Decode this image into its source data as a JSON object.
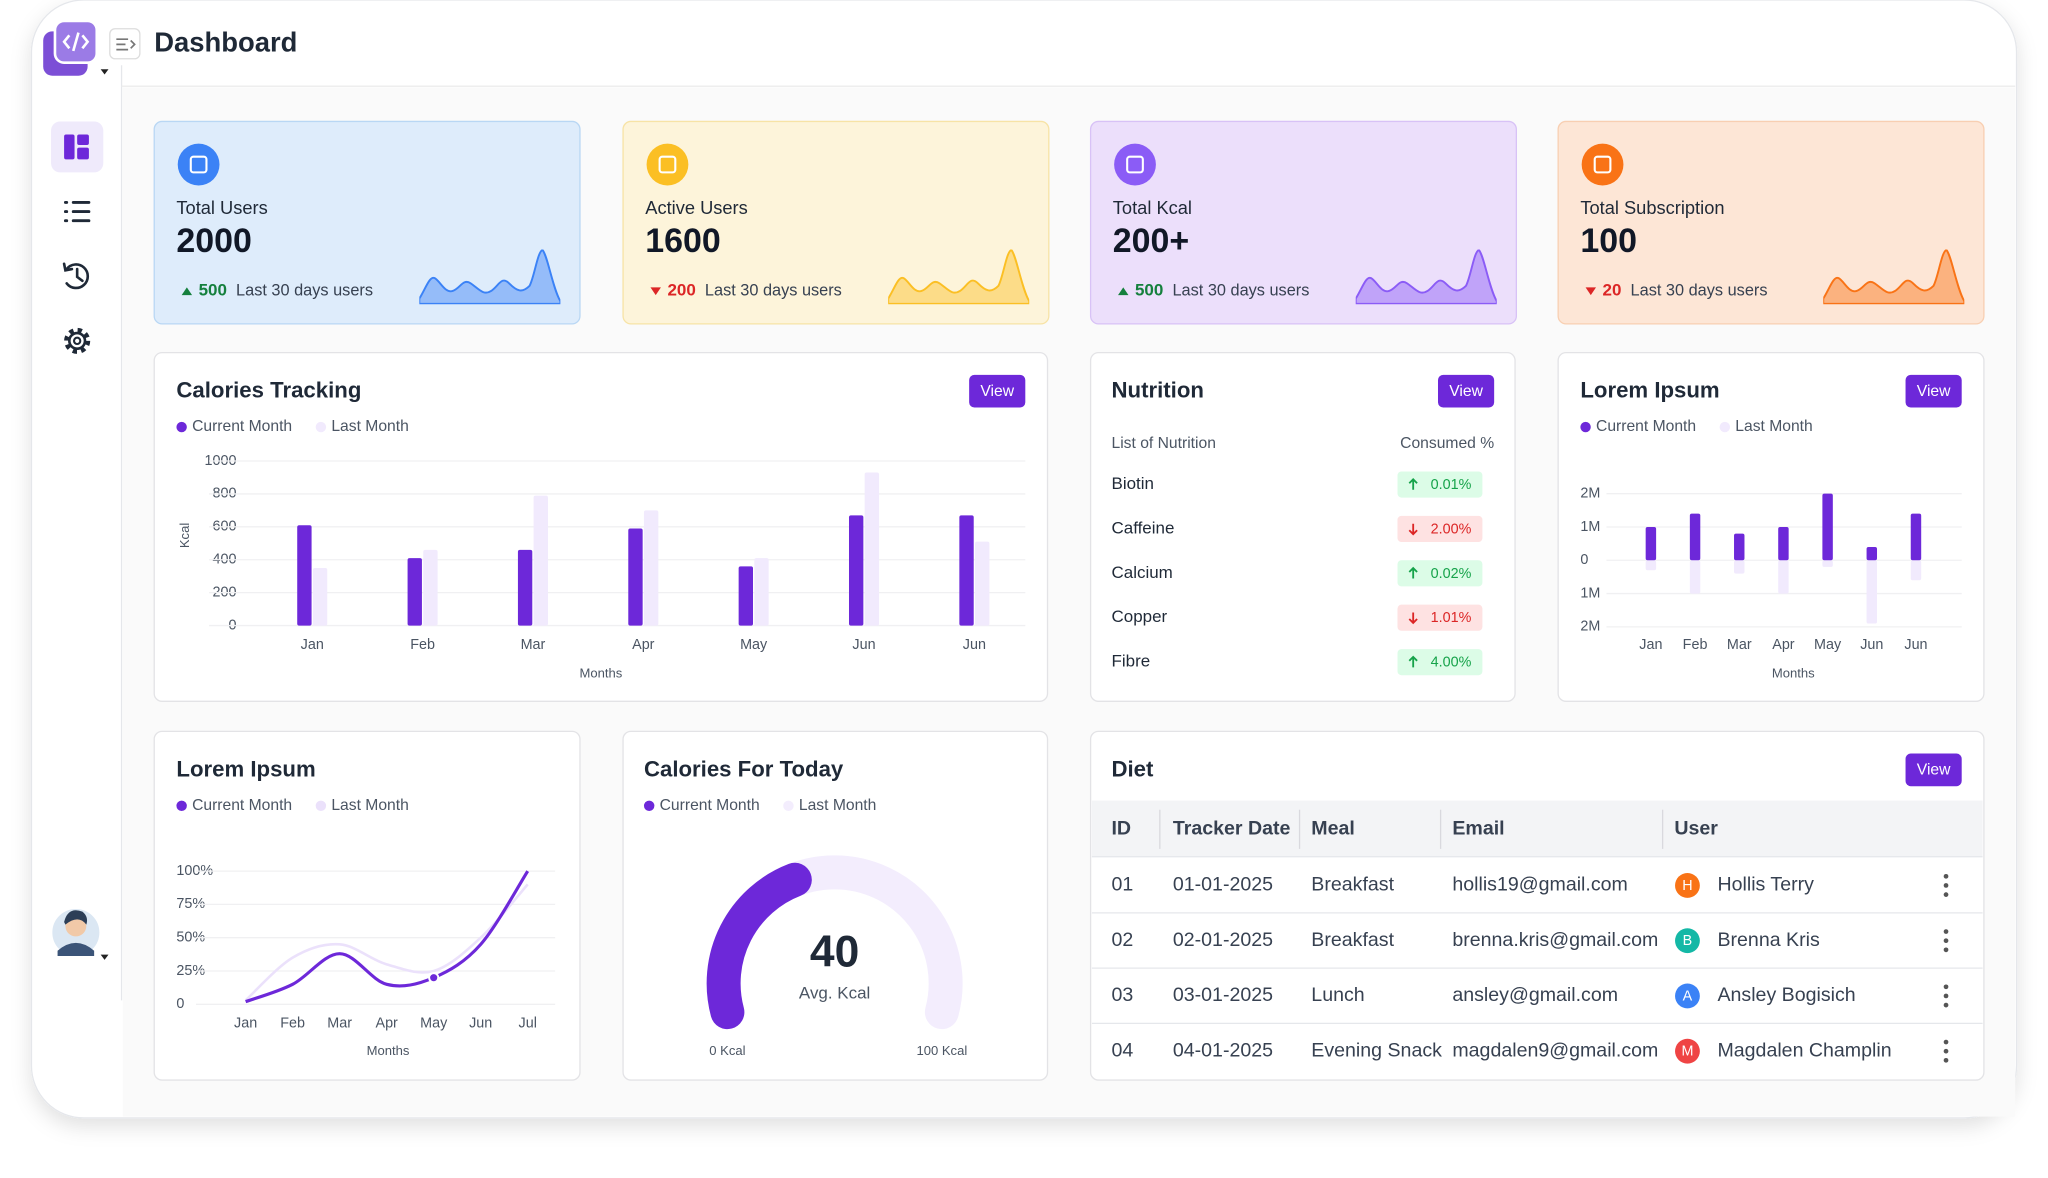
{
  "header": {
    "title": "Dashboard"
  },
  "stats": [
    {
      "label": "Total Users",
      "value": "2000",
      "change": "500",
      "trend": "up",
      "note": "Last 30 days users",
      "color": "#3b82f6",
      "bg": "#deecfb",
      "border": "#b9d7f4"
    },
    {
      "label": "Active Users",
      "value": "1600",
      "change": "200",
      "trend": "down",
      "note": "Last 30 days users",
      "color": "#fbbf24",
      "bg": "#fdf4da",
      "border": "#f7e3a6"
    },
    {
      "label": "Total Kcal",
      "value": "200+",
      "change": "500",
      "trend": "up",
      "note": "Last 30 days users",
      "color": "#8b5cf6",
      "bg": "#ecdffb",
      "border": "#d8c2f6"
    },
    {
      "label": "Total Subscription",
      "value": "100",
      "change": "20",
      "trend": "down",
      "note": "Last 30 days users",
      "color": "#f97316",
      "bg": "#fde6d6",
      "border": "#f8cfb2"
    }
  ],
  "chart_data": [
    {
      "type": "bar",
      "title": "Calories Tracking",
      "button": "View",
      "categories": [
        "Jan",
        "Feb",
        "Mar",
        "Apr",
        "May",
        "Jun",
        "Jun"
      ],
      "series": [
        {
          "name": "Current Month",
          "color": "#6d28d9",
          "values": [
            610,
            410,
            460,
            590,
            360,
            670,
            670
          ]
        },
        {
          "name": "Last Month",
          "color": "#f1eafd",
          "values": [
            350,
            460,
            790,
            700,
            410,
            930,
            510
          ]
        }
      ],
      "ylim": [
        0,
        1000
      ],
      "yticks": [
        0,
        200,
        400,
        600,
        800,
        1000
      ],
      "y_label": "Kcal",
      "x_label": "Months",
      "grid": true
    },
    {
      "type": "bar",
      "title": "Lorem Ipsum",
      "button": "View",
      "categories": [
        "Jan",
        "Feb",
        "Mar",
        "Apr",
        "May",
        "Jun",
        "Jun"
      ],
      "series": [
        {
          "name": "Current Month",
          "color": "#6d28d9",
          "values": [
            1000000,
            1400000,
            800000,
            1000000,
            2000000,
            400000,
            1400000
          ]
        },
        {
          "name": "Last Month",
          "color": "#f1eafd",
          "values": [
            -300000,
            -1000000,
            -400000,
            -1000000,
            -200000,
            -1900000,
            -600000
          ]
        }
      ],
      "ylim": [
        -2000000,
        2000000
      ],
      "yticks": [
        {
          "value": 2000000,
          "label": "2M"
        },
        {
          "value": 1000000,
          "label": "1M"
        },
        0,
        {
          "value": -1000000,
          "label": "1M"
        },
        {
          "value": -2000000,
          "label": "2M"
        }
      ],
      "x_label": "Months",
      "grid": true
    },
    {
      "type": "line",
      "title": "Lorem Ipsum",
      "categories": [
        "Jan",
        "Feb",
        "Mar",
        "Apr",
        "May",
        "Jun",
        "Jul"
      ],
      "series": [
        {
          "name": "Current Month",
          "color": "#6d28d9",
          "values": [
            2,
            15,
            38,
            15,
            20,
            45,
            100
          ]
        },
        {
          "name": "Last Month",
          "color": "#ebe1fb",
          "values": [
            3,
            35,
            45,
            30,
            25,
            50,
            90
          ]
        }
      ],
      "ylim": [
        0,
        100
      ],
      "yticks": [
        {
          "value": 100,
          "label": "100%"
        },
        {
          "value": 75,
          "label": "75%"
        },
        {
          "value": 50,
          "label": "50%"
        },
        {
          "value": 25,
          "label": "25%"
        },
        0
      ],
      "x_label": "Months",
      "grid": true
    },
    {
      "type": "gauge",
      "title": "Calories For Today",
      "series": [
        {
          "name": "Current Month",
          "color": "#6d28d9"
        },
        {
          "name": "Last Month",
          "color": "#f3edfd"
        }
      ],
      "value": 40,
      "caption": "Avg. Kcal",
      "lim": [
        0,
        100
      ],
      "ticks": [
        {
          "value": 0,
          "label": "0 Kcal"
        },
        {
          "value": 100,
          "label": "100 Kcal"
        }
      ]
    }
  ],
  "nutrition": {
    "title": "Nutrition",
    "button": "View",
    "columns": [
      "List of Nutrition",
      "Consumed %"
    ],
    "rows": [
      {
        "name": "Biotin",
        "value": "0.01%",
        "trend": "up"
      },
      {
        "name": "Caffeine",
        "value": "2.00%",
        "trend": "down"
      },
      {
        "name": "Calcium",
        "value": "0.02%",
        "trend": "up"
      },
      {
        "name": "Copper",
        "value": "1.01%",
        "trend": "down"
      },
      {
        "name": "Fibre",
        "value": "4.00%",
        "trend": "up"
      }
    ]
  },
  "diet": {
    "title": "Diet",
    "button": "View",
    "columns": [
      "ID",
      "Tracker Date",
      "Meal",
      "Email",
      "User"
    ],
    "rows": [
      {
        "id": "01",
        "date": "01-01-2025",
        "meal": "Breakfast",
        "email": "hollis19@gmail.com",
        "initial": "H",
        "user": "Hollis Terry",
        "color": "#f97316"
      },
      {
        "id": "02",
        "date": "02-01-2025",
        "meal": "Breakfast",
        "email": "brenna.kris@gmail.com",
        "initial": "B",
        "user": "Brenna Kris",
        "color": "#14b8a6"
      },
      {
        "id": "03",
        "date": "03-01-2025",
        "meal": "Lunch",
        "email": "ansley@gmail.com",
        "initial": "A",
        "user": "Ansley Bogisich",
        "color": "#3b82f6"
      },
      {
        "id": "04",
        "date": "04-01-2025",
        "meal": "Evening Snack",
        "email": "magdalen9@gmail.com",
        "initial": "M",
        "user": "Magdalen Champlin",
        "color": "#ef4444"
      }
    ]
  }
}
